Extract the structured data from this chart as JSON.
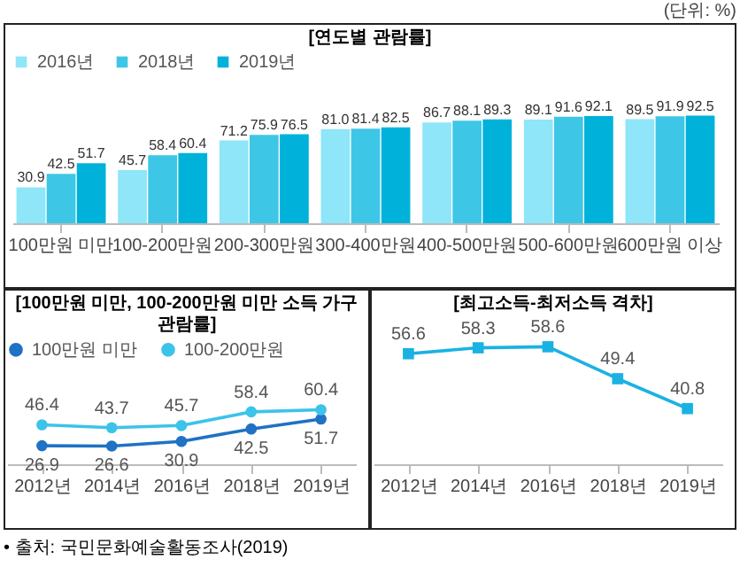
{
  "chart_data": [
    {
      "type": "bar",
      "title": "[연도별 관람률]",
      "annotations": [
        "(단위: %)"
      ],
      "categories": [
        "100만원 미만",
        "100-200만원",
        "200-300만원",
        "300-400만원",
        "400-500만원",
        "500-600만원",
        "600만원 이상"
      ],
      "series": [
        {
          "name": "2016년",
          "color": "#8ee6f8",
          "values": [
            30.9,
            45.7,
            71.2,
            81.0,
            86.7,
            89.1,
            89.5
          ],
          "value_labels": [
            "30.9",
            "45.7",
            "71.2",
            "81.0",
            "86.7",
            "89.1",
            "89.5"
          ]
        },
        {
          "name": "2018년",
          "color": "#3ec6e6",
          "values": [
            42.5,
            58.4,
            75.9,
            81.4,
            88.1,
            91.6,
            91.9
          ]
        },
        {
          "name": "2019년",
          "color": "#00b2da",
          "values": [
            51.7,
            60.4,
            76.5,
            82.5,
            89.3,
            92.1,
            92.5
          ]
        }
      ],
      "data_labels": true,
      "legend": "top",
      "grid": false,
      "tick_labels": "x"
    },
    {
      "type": "line",
      "title": "[100만원 미만, 100-200만원 미만 소득 가구 관람률]",
      "annotations": [
        "• 출처: 국민문화예술활동조사(2019)"
      ],
      "categories": [
        "2012년",
        "2014년",
        "2016년",
        "2018년",
        "2019년"
      ],
      "series": [
        {
          "name": "100만원 미만",
          "color": "#1f72c4",
          "values": [
            26.9,
            26.6,
            30.9,
            42.5,
            51.7
          ]
        },
        {
          "name": "100-200만원",
          "color": "#3cc3ea",
          "values": [
            46.4,
            43.7,
            45.7,
            58.4,
            60.4
          ]
        }
      ],
      "data_labels": true,
      "legend": "top",
      "marker": "circle",
      "grid": false,
      "tick_labels": "x"
    },
    {
      "type": "line",
      "title": "[최고소득-최저소득 격차]",
      "categories": [
        "2012년",
        "2014년",
        "2016년",
        "2018년",
        "2019년"
      ],
      "series": [
        {
          "color": "#1ab2e2",
          "values": [
            56.6,
            58.3,
            58.6,
            49.4,
            40.8
          ]
        }
      ],
      "data_labels": true,
      "marker": "square",
      "grid": false,
      "tick_labels": "x"
    }
  ]
}
